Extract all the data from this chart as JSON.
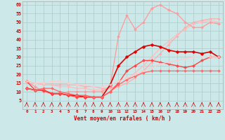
{
  "xlabel": "Vent moyen/en rafales ( km/h )",
  "xlim": [
    -0.5,
    23.5
  ],
  "ylim": [
    0,
    62
  ],
  "yticks": [
    5,
    10,
    15,
    20,
    25,
    30,
    35,
    40,
    45,
    50,
    55,
    60
  ],
  "xticks": [
    0,
    1,
    2,
    3,
    4,
    5,
    6,
    7,
    8,
    9,
    10,
    11,
    12,
    13,
    14,
    15,
    16,
    17,
    18,
    19,
    20,
    21,
    22,
    23
  ],
  "bg_color": "#cce8e8",
  "grid_color": "#aacccc",
  "lines": [
    {
      "x": [
        0,
        1,
        2,
        3,
        4,
        5,
        6,
        7,
        8,
        9,
        10,
        11,
        12,
        13,
        14,
        15,
        16,
        17,
        18,
        19,
        20,
        21,
        22,
        23
      ],
      "y": [
        16,
        15,
        14,
        14,
        14,
        14,
        14,
        13,
        13,
        12,
        12,
        13,
        15,
        18,
        22,
        27,
        32,
        37,
        42,
        47,
        50,
        51,
        52,
        52
      ],
      "color": "#ffaaaa",
      "lw": 0.8,
      "marker": "D",
      "ms": 1.8
    },
    {
      "x": [
        0,
        1,
        2,
        3,
        4,
        5,
        6,
        7,
        8,
        9,
        10,
        11,
        12,
        13,
        14,
        15,
        16,
        17,
        18,
        19,
        20,
        21,
        22,
        23
      ],
      "y": [
        16,
        15,
        14,
        14,
        13,
        13,
        12,
        12,
        11,
        11,
        12,
        14,
        17,
        21,
        25,
        30,
        35,
        39,
        43,
        46,
        49,
        50,
        51,
        50
      ],
      "color": "#ffbbbb",
      "lw": 0.8,
      "marker": "D",
      "ms": 1.8
    },
    {
      "x": [
        0,
        1,
        2,
        3,
        4,
        5,
        6,
        7,
        8,
        9,
        10,
        11,
        12,
        13,
        14,
        15,
        16,
        17,
        18,
        19,
        20,
        21,
        22,
        23
      ],
      "y": [
        16,
        13,
        10,
        9,
        9,
        10,
        10,
        10,
        10,
        10,
        13,
        42,
        54,
        46,
        50,
        58,
        60,
        57,
        55,
        50,
        47,
        47,
        50,
        49
      ],
      "color": "#ff9999",
      "lw": 0.9,
      "marker": "D",
      "ms": 2.0
    },
    {
      "x": [
        0,
        1,
        2,
        3,
        4,
        5,
        6,
        7,
        8,
        9,
        10,
        11,
        12,
        13,
        14,
        15,
        16,
        17,
        18,
        19,
        20,
        21,
        22,
        23
      ],
      "y": [
        12,
        11,
        11,
        9,
        9,
        8,
        8,
        7,
        7,
        7,
        14,
        25,
        30,
        33,
        36,
        37,
        36,
        34,
        33,
        33,
        33,
        32,
        33,
        30
      ],
      "color": "#dd0000",
      "lw": 1.2,
      "marker": "D",
      "ms": 2.5
    },
    {
      "x": [
        0,
        1,
        2,
        3,
        4,
        5,
        6,
        7,
        8,
        9,
        10,
        11,
        12,
        13,
        14,
        15,
        16,
        17,
        18,
        19,
        20,
        21,
        22,
        23
      ],
      "y": [
        16,
        11,
        11,
        9,
        9,
        8,
        7,
        7,
        7,
        7,
        10,
        15,
        22,
        25,
        28,
        28,
        27,
        26,
        25,
        24,
        25,
        28,
        30,
        30
      ],
      "color": "#ff4444",
      "lw": 1.0,
      "marker": "D",
      "ms": 2.2
    },
    {
      "x": [
        0,
        1,
        2,
        3,
        4,
        5,
        6,
        7,
        8,
        9,
        10,
        11,
        12,
        13,
        14,
        15,
        16,
        17,
        18,
        19,
        20,
        21,
        22,
        23
      ],
      "y": [
        12,
        11,
        12,
        12,
        10,
        9,
        8,
        8,
        7,
        7,
        10,
        14,
        17,
        19,
        21,
        22,
        22,
        22,
        22,
        22,
        22,
        22,
        22,
        22
      ],
      "color": "#ff6666",
      "lw": 0.9,
      "marker": "D",
      "ms": 2.0
    },
    {
      "x": [
        0,
        1,
        2,
        3,
        4,
        5,
        6,
        7,
        8,
        9,
        10,
        11,
        12,
        13,
        14,
        15,
        16,
        17,
        18,
        19,
        20,
        21,
        22,
        23
      ],
      "y": [
        16,
        15,
        15,
        16,
        16,
        15,
        14,
        14,
        13,
        13,
        14,
        16,
        18,
        20,
        22,
        24,
        26,
        27,
        28,
        29,
        30,
        30,
        30,
        30
      ],
      "color": "#ffcccc",
      "lw": 0.8,
      "marker": "D",
      "ms": 1.8
    }
  ]
}
